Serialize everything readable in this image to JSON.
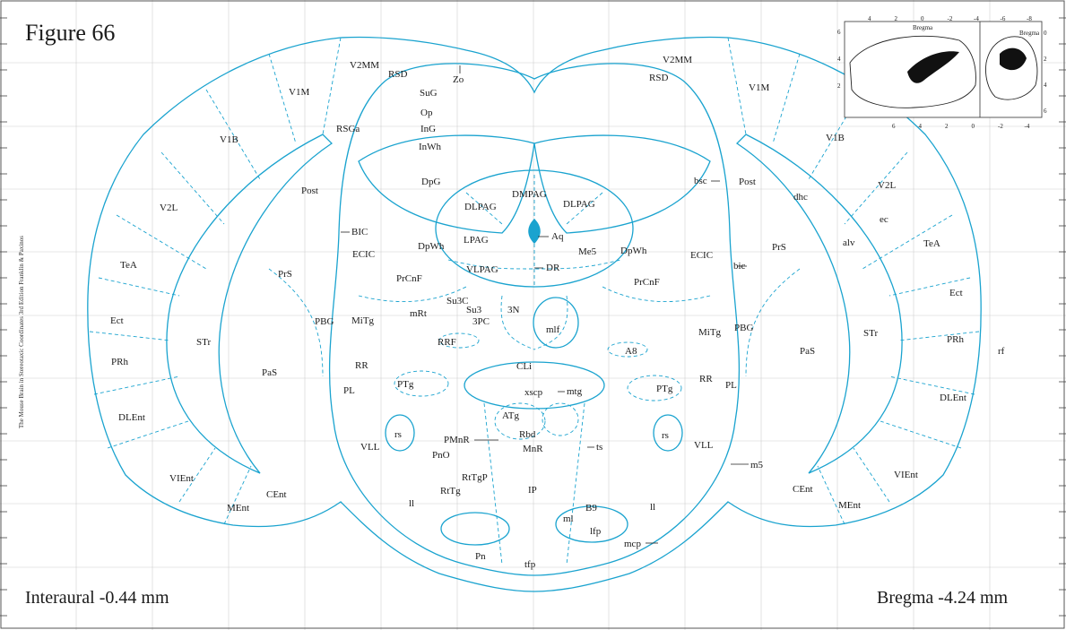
{
  "figure": {
    "title": "Figure 66"
  },
  "coordinates": {
    "interaural": "Interaural -0.44 mm",
    "bregma": "Bregma -4.24 mm"
  },
  "side_caption": "The Mouse Brain in Stereotaxic Coordinates 3rd Edition  Franklin & Paxinos",
  "colors": {
    "outline": "#1aa3cf",
    "fill": "#1aa3cf",
    "grid": "#d0d0d0"
  },
  "inset": {
    "label_left": "Bregma",
    "label_right": "Bregma",
    "top_ticks": [
      "4",
      "2",
      "0",
      "-2",
      "-4",
      "-6",
      "-8"
    ],
    "bottom_ticks": [
      "6",
      "4",
      "2",
      "0",
      "-2",
      "-4"
    ],
    "left_ticks": [
      "6",
      "4",
      "2"
    ],
    "right_ticks": [
      "0",
      "2",
      "4",
      "6"
    ]
  },
  "labels": {
    "left": [
      "V2MM",
      "RSD",
      "V1M",
      "RSGa",
      "V1B",
      "Post",
      "V2L",
      "TeA",
      "PrS",
      "Ect",
      "STr",
      "PRh",
      "PaS",
      "DLEnt",
      "VIEnt",
      "MEnt",
      "CEnt",
      "BIC",
      "ECIC",
      "PrCnF",
      "PBG",
      "MiTg",
      "mRt",
      "RR",
      "RRF",
      "PL",
      "PTg",
      "rs",
      "VLL",
      "ll"
    ],
    "right": [
      "V2MM",
      "RSD",
      "V1M",
      "V1B",
      "bsc",
      "Post",
      "dhc",
      "V2L",
      "ec",
      "alv",
      "TeA",
      "PrS",
      "Ect",
      "STr",
      "PRh",
      "rf",
      "PaS",
      "DLEnt",
      "VIEnt",
      "CEnt",
      "MEnt",
      "ECIC",
      "bic",
      "PrCnF",
      "PBG",
      "MiTg",
      "RR",
      "PL",
      "PTg",
      "A8",
      "rs",
      "VLL",
      "m5",
      "ll",
      "mcp"
    ],
    "midline": [
      "Zo",
      "SuG",
      "Op",
      "InG",
      "InWh",
      "DpG",
      "DMPAG",
      "DLPAG",
      "DLPAG",
      "LPAG",
      "Aq",
      "DpWh",
      "Me5",
      "DpWh",
      "VLPAG",
      "DR",
      "Su3C",
      "Su3",
      "3N",
      "3PC",
      "mlf",
      "CLi",
      "xscp",
      "mtg",
      "ATg",
      "Rbd",
      "PMnR",
      "MnR",
      "PnO",
      "ts",
      "RtTgP",
      "RtTg",
      "IP",
      "B9",
      "ml",
      "lfp",
      "Pn",
      "tfp"
    ]
  }
}
